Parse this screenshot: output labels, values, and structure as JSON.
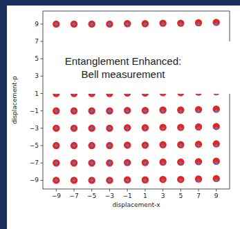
{
  "chart_data": {
    "type": "scatter",
    "x_label": "displacement-x",
    "y_label": "displacement-p",
    "annotations": [
      "Entanglement Enhanced:",
      "Bell measurement"
    ],
    "xlim": [
      -10.5,
      10.5
    ],
    "ylim": [
      -10,
      10.5
    ],
    "xticks": [
      {
        "value": -9,
        "label": "−9"
      },
      {
        "value": -7,
        "label": "−7"
      },
      {
        "value": -5,
        "label": "−5"
      },
      {
        "value": -3,
        "label": "−3"
      },
      {
        "value": -1,
        "label": "−1"
      },
      1,
      3,
      5,
      7,
      9
    ],
    "yticks": [
      {
        "value": -9,
        "label": "−9"
      },
      {
        "value": -7,
        "label": "−7"
      },
      {
        "value": -5,
        "label": "−5"
      },
      {
        "value": -3,
        "label": "−3"
      },
      {
        "value": -1,
        "label": "−1"
      },
      1,
      3,
      5,
      7,
      9
    ],
    "grid": false,
    "series": [
      {
        "color": "#e8231f",
        "marker": "circle",
        "x": [
          -9,
          -7,
          -5,
          -3,
          -1,
          1,
          3,
          5,
          7,
          9,
          -9,
          -7,
          -5,
          -3,
          -1,
          1,
          3,
          5,
          7,
          9,
          -9,
          -7,
          -5,
          -3,
          -1,
          1,
          3,
          5,
          7,
          9,
          -9,
          -7,
          -5,
          -3,
          -1,
          1,
          3,
          5,
          7,
          9,
          -9,
          -7,
          -5,
          -3,
          -1,
          1,
          3,
          5,
          7,
          9,
          -9,
          -7,
          -5,
          -3,
          -1,
          1,
          3,
          5,
          7,
          9,
          -9,
          -7,
          -5,
          -3,
          -1,
          1,
          3,
          5,
          7,
          9
        ],
        "values": [
          9,
          9,
          9,
          9,
          9.05,
          9.05,
          9.1,
          9.1,
          9.15,
          9.2,
          1,
          1,
          1,
          1,
          1.05,
          1.05,
          1.1,
          1.1,
          1.15,
          1.2,
          -1,
          -1,
          -1,
          -1,
          -0.95,
          -0.95,
          -0.9,
          -0.9,
          -0.85,
          -0.8,
          -3,
          -3,
          -3,
          -3,
          -2.95,
          -2.95,
          -2.9,
          -2.9,
          -2.85,
          -2.8,
          -5,
          -5,
          -5,
          -5,
          -4.95,
          -4.95,
          -4.9,
          -4.9,
          -4.85,
          -4.8,
          -7,
          -7,
          -7,
          -7,
          -6.95,
          -6.95,
          -6.9,
          -6.9,
          -6.85,
          -6.8,
          -9,
          -9,
          -9,
          -9,
          -8.95,
          -8.95,
          -8.9,
          -8.9,
          -8.85,
          -8.8
        ]
      },
      {
        "color": "#4a7fd0",
        "marker": "plus",
        "x": [
          -9,
          -7,
          -5,
          -3,
          -1,
          1,
          3,
          5,
          7,
          9,
          -9,
          -7,
          -5,
          -3,
          -1,
          1,
          3,
          5,
          7,
          9,
          -9,
          -7,
          -5,
          -3,
          -1,
          1,
          3,
          5,
          7,
          9,
          -9,
          -7,
          -5,
          -3,
          -1,
          1,
          3,
          5,
          7,
          9,
          -9,
          -7,
          -5,
          -3,
          -1,
          1,
          3,
          5,
          7,
          9,
          -9,
          -7,
          -5,
          -3,
          -1,
          1,
          3,
          5,
          7,
          9,
          -9,
          -7,
          -5,
          -3,
          -1,
          1,
          3,
          5,
          7,
          9
        ],
        "values": [
          9,
          9,
          9,
          9,
          9,
          9,
          9,
          9,
          9,
          9,
          1,
          1,
          1,
          1,
          1,
          1,
          1,
          1,
          1,
          1,
          -1,
          -1,
          -1,
          -1,
          -1,
          -1,
          -1,
          -1,
          -1,
          -1,
          -3,
          -3,
          -3,
          -3,
          -3,
          -3,
          -3,
          -3,
          -3,
          -3,
          -5,
          -5,
          -5,
          -5,
          -5,
          -5,
          -5,
          -5,
          -5,
          -5,
          -7,
          -7,
          -7,
          -7,
          -7,
          -7,
          -7,
          -7,
          -7,
          -7,
          -9,
          -9,
          -9,
          -9,
          -9,
          -9,
          -9,
          -9,
          -9,
          -9
        ]
      }
    ]
  }
}
